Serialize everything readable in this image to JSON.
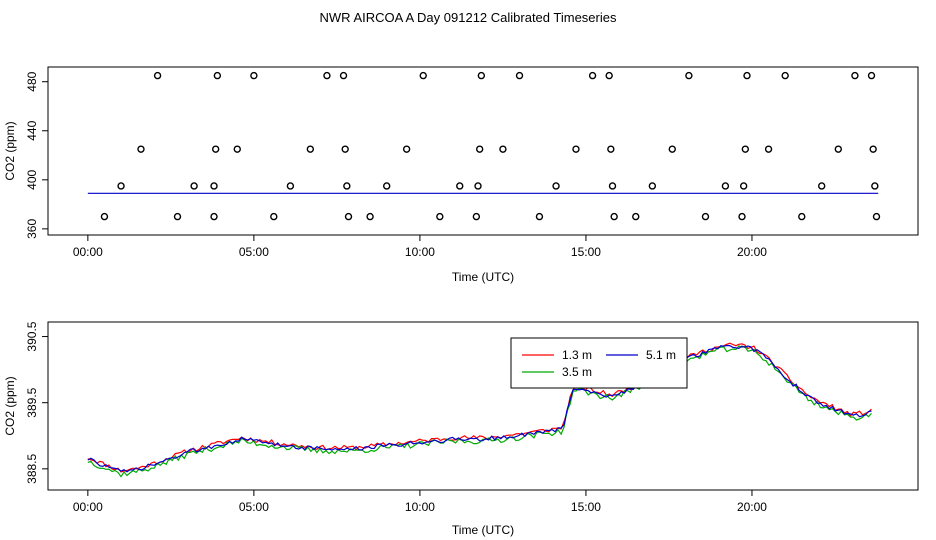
{
  "title": "NWR AIRCOA A  Day 091212  Calibrated Timeseries",
  "chart_data": [
    {
      "type": "scatter",
      "name": "top-panel",
      "xlabel": "Time (UTC)",
      "ylabel": "CO2 (ppm)",
      "xlim": [
        -1.2,
        25.0
      ],
      "ylim": [
        355,
        492
      ],
      "xticks": [
        0,
        5,
        10,
        15,
        20
      ],
      "xtick_labels": [
        "00:00",
        "05:00",
        "10:00",
        "15:00",
        "20:00"
      ],
      "yticks": [
        360,
        400,
        440,
        480
      ],
      "ytick_labels": [
        "360",
        "400",
        "440",
        "480"
      ],
      "points": [
        [
          0.5,
          370
        ],
        [
          1.0,
          395
        ],
        [
          1.6,
          425
        ],
        [
          2.1,
          485
        ],
        [
          2.7,
          370
        ],
        [
          3.2,
          395
        ],
        [
          3.8,
          370
        ],
        [
          3.8,
          395
        ],
        [
          3.85,
          425
        ],
        [
          3.9,
          485
        ],
        [
          4.5,
          425
        ],
        [
          5.0,
          485
        ],
        [
          5.6,
          370
        ],
        [
          6.1,
          395
        ],
        [
          6.7,
          425
        ],
        [
          7.2,
          485
        ],
        [
          7.7,
          485
        ],
        [
          7.75,
          425
        ],
        [
          7.8,
          395
        ],
        [
          7.85,
          370
        ],
        [
          8.5,
          370
        ],
        [
          9.0,
          395
        ],
        [
          9.6,
          425
        ],
        [
          10.1,
          485
        ],
        [
          10.6,
          370
        ],
        [
          11.2,
          395
        ],
        [
          11.7,
          370
        ],
        [
          11.75,
          395
        ],
        [
          11.8,
          425
        ],
        [
          11.85,
          485
        ],
        [
          12.5,
          425
        ],
        [
          13.0,
          485
        ],
        [
          13.6,
          370
        ],
        [
          14.1,
          395
        ],
        [
          14.7,
          425
        ],
        [
          15.2,
          485
        ],
        [
          15.7,
          485
        ],
        [
          15.75,
          425
        ],
        [
          15.8,
          395
        ],
        [
          15.85,
          370
        ],
        [
          16.5,
          370
        ],
        [
          17.0,
          395
        ],
        [
          17.6,
          425
        ],
        [
          18.1,
          485
        ],
        [
          18.6,
          370
        ],
        [
          19.2,
          395
        ],
        [
          19.7,
          370
        ],
        [
          19.75,
          395
        ],
        [
          19.8,
          425
        ],
        [
          19.85,
          485
        ],
        [
          20.5,
          425
        ],
        [
          21.0,
          485
        ],
        [
          21.5,
          370
        ],
        [
          22.1,
          395
        ],
        [
          22.6,
          425
        ],
        [
          23.1,
          485
        ],
        [
          23.6,
          485
        ],
        [
          23.65,
          425
        ],
        [
          23.7,
          395
        ],
        [
          23.75,
          370
        ]
      ],
      "baseline": {
        "from": 0,
        "to": 23.8,
        "value": 389
      }
    },
    {
      "type": "line",
      "name": "bottom-panel",
      "xlabel": "Time (UTC)",
      "ylabel": "CO2 (ppm)",
      "xlim": [
        -1.2,
        25.0
      ],
      "ylim": [
        388.18,
        390.72
      ],
      "xticks": [
        0,
        5,
        10,
        15,
        20
      ],
      "xtick_labels": [
        "00:00",
        "05:00",
        "10:00",
        "15:00",
        "20:00"
      ],
      "yticks": [
        388.5,
        389.5,
        390.5
      ],
      "ytick_labels": [
        "388.5",
        "389.5",
        "390.5"
      ],
      "legend_position": "top-center",
      "base_curve": {
        "x": [
          0.0,
          0.5,
          1.0,
          1.6,
          2.2,
          3.0,
          3.8,
          4.6,
          5.3,
          6.0,
          7.0,
          8.0,
          9.0,
          10.0,
          11.0,
          12.0,
          12.9,
          13.6,
          14.3,
          14.6,
          14.8,
          15.3,
          15.8,
          16.3,
          17.0,
          17.6,
          18.2,
          18.8,
          19.3,
          19.7,
          20.1,
          20.6,
          21.2,
          21.8,
          22.5,
          23.0,
          23.6
        ],
        "y": [
          388.65,
          388.55,
          388.45,
          388.5,
          388.6,
          388.75,
          388.85,
          388.95,
          388.9,
          388.85,
          388.8,
          388.8,
          388.85,
          388.9,
          388.95,
          388.95,
          389.0,
          389.05,
          389.1,
          389.7,
          389.72,
          389.65,
          389.6,
          389.7,
          389.85,
          390.0,
          390.2,
          390.3,
          390.35,
          390.35,
          390.3,
          390.1,
          389.8,
          389.55,
          389.4,
          389.3,
          389.35
        ]
      },
      "series": [
        {
          "name": "1.3 m",
          "color": "#ff0000",
          "offset": 0.02,
          "noise": 0.035,
          "seed": 11
        },
        {
          "name": "3.5 m",
          "color": "#00aa00",
          "offset": -0.03,
          "noise": 0.045,
          "seed": 37
        },
        {
          "name": "5.1 m",
          "color": "#0000cc",
          "offset": 0.0,
          "noise": 0.035,
          "seed": 73
        }
      ]
    }
  ]
}
